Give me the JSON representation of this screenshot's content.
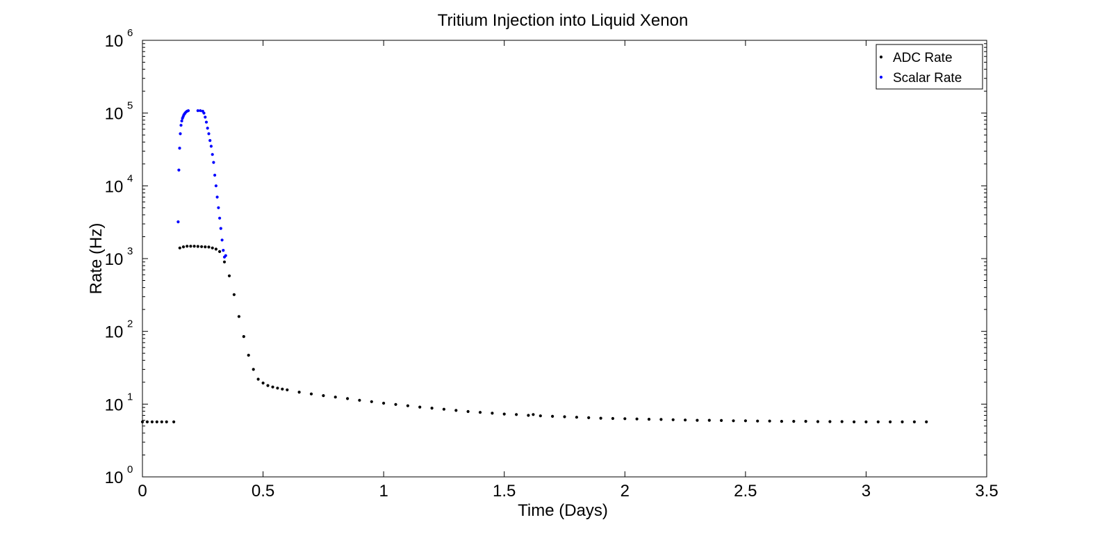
{
  "chart_data": {
    "type": "scatter",
    "title": "Tritium Injection into Liquid Xenon",
    "xlabel": "Time (Days)",
    "ylabel": "Rate (Hz)",
    "xlim": [
      0,
      3.5
    ],
    "ylim": [
      1,
      1000000
    ],
    "yscale": "log",
    "xticks": [
      "0",
      "0.5",
      "1",
      "1.5",
      "2",
      "2.5",
      "3",
      "3.5"
    ],
    "xtick_values": [
      0,
      0.5,
      1,
      1.5,
      2,
      2.5,
      3,
      3.5
    ],
    "yticks": [
      {
        "base": "10",
        "exp": "0",
        "value": 1
      },
      {
        "base": "10",
        "exp": "1",
        "value": 10
      },
      {
        "base": "10",
        "exp": "2",
        "value": 100
      },
      {
        "base": "10",
        "exp": "3",
        "value": 1000
      },
      {
        "base": "10",
        "exp": "4",
        "value": 10000
      },
      {
        "base": "10",
        "exp": "5",
        "value": 100000
      },
      {
        "base": "10",
        "exp": "6",
        "value": 1000000
      }
    ],
    "grid": false,
    "legend_position": "top-right",
    "series": [
      {
        "name": "ADC Rate",
        "color": "#000000",
        "marker": "dot",
        "x": [
          0.0,
          0.02,
          0.04,
          0.06,
          0.08,
          0.1,
          0.13,
          0.155,
          0.17,
          0.185,
          0.2,
          0.215,
          0.23,
          0.245,
          0.26,
          0.275,
          0.29,
          0.305,
          0.32,
          0.34,
          0.36,
          0.38,
          0.4,
          0.42,
          0.44,
          0.46,
          0.48,
          0.5,
          0.52,
          0.54,
          0.56,
          0.58,
          0.6,
          0.65,
          0.7,
          0.75,
          0.8,
          0.85,
          0.9,
          0.95,
          1.0,
          1.05,
          1.1,
          1.15,
          1.2,
          1.25,
          1.3,
          1.35,
          1.4,
          1.45,
          1.5,
          1.55,
          1.6,
          1.62,
          1.65,
          1.7,
          1.75,
          1.8,
          1.85,
          1.9,
          1.95,
          2.0,
          2.05,
          2.1,
          2.15,
          2.2,
          2.25,
          2.3,
          2.35,
          2.4,
          2.45,
          2.5,
          2.55,
          2.6,
          2.65,
          2.7,
          2.75,
          2.8,
          2.85,
          2.9,
          2.95,
          3.0,
          3.05,
          3.1,
          3.15,
          3.2,
          3.25
        ],
        "y": [
          5.7,
          5.7,
          5.7,
          5.7,
          5.7,
          5.7,
          5.7,
          1400,
          1450,
          1480,
          1480,
          1480,
          1470,
          1460,
          1450,
          1440,
          1400,
          1350,
          1250,
          900,
          580,
          320,
          160,
          85,
          47,
          30,
          22,
          19.5,
          18,
          17.2,
          16.6,
          16.1,
          15.7,
          14.6,
          13.8,
          13.1,
          12.5,
          11.9,
          11.3,
          10.8,
          10.3,
          9.9,
          9.5,
          9.1,
          8.8,
          8.5,
          8.2,
          7.9,
          7.7,
          7.5,
          7.3,
          7.2,
          7.0,
          7.2,
          6.9,
          6.8,
          6.7,
          6.6,
          6.5,
          6.4,
          6.35,
          6.3,
          6.25,
          6.2,
          6.15,
          6.1,
          6.05,
          6.0,
          6.0,
          5.95,
          5.9,
          5.9,
          5.85,
          5.85,
          5.8,
          5.8,
          5.8,
          5.75,
          5.75,
          5.75,
          5.7,
          5.7,
          5.7,
          5.7,
          5.7,
          5.7,
          5.7
        ]
      },
      {
        "name": "Scalar Rate",
        "color": "#0000ff",
        "marker": "dot",
        "x": [
          0.148,
          0.151,
          0.154,
          0.157,
          0.16,
          0.163,
          0.166,
          0.169,
          0.172,
          0.176,
          0.18,
          0.185,
          0.19,
          0.23,
          0.24,
          0.25,
          0.255,
          0.26,
          0.265,
          0.27,
          0.275,
          0.28,
          0.285,
          0.29,
          0.295,
          0.3,
          0.305,
          0.31,
          0.315,
          0.32,
          0.325,
          0.33,
          0.335,
          0.34,
          0.345
        ],
        "y": [
          3200,
          16500,
          33000,
          52000,
          68000,
          78000,
          85000,
          90000,
          95000,
          99000,
          103000,
          106000,
          108000,
          108000,
          108000,
          106000,
          100000,
          88000,
          75000,
          62000,
          52000,
          42000,
          35000,
          27000,
          21000,
          14000,
          10000,
          7000,
          5000,
          3600,
          2600,
          1800,
          1300,
          1050,
          1100
        ]
      }
    ]
  }
}
